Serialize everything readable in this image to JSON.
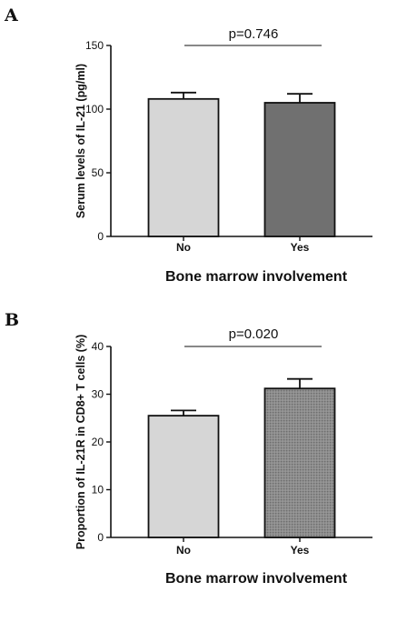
{
  "chart_data": [
    {
      "panel": "A",
      "type": "bar",
      "categories": [
        "No",
        "Yes"
      ],
      "values": [
        108,
        105
      ],
      "errors": [
        5,
        7
      ],
      "colors": [
        "#d6d6d6",
        "#707070"
      ],
      "patterned": [
        false,
        false
      ],
      "xlabel": "Bone marrow involvement",
      "ylabel": "Serum levels of IL-21 (pg/ml)",
      "ylim": [
        0,
        150
      ],
      "yticks": [
        "0",
        "50",
        "100",
        "150"
      ],
      "annotation": "p=0.746",
      "grid": false
    },
    {
      "panel": "B",
      "type": "bar",
      "categories": [
        "No",
        "Yes"
      ],
      "values": [
        25.5,
        31.2
      ],
      "errors": [
        1.1,
        2.0
      ],
      "colors": [
        "#d6d6d6",
        "#8c8c8c"
      ],
      "patterned": [
        false,
        true
      ],
      "xlabel": "Bone marrow involvement",
      "ylabel": "Proportion of IL-21R in CD8+ T cells (%)",
      "ylim": [
        0,
        40
      ],
      "yticks": [
        "0",
        "10",
        "20",
        "30",
        "40"
      ],
      "annotation": "p=0.020",
      "grid": false
    }
  ]
}
